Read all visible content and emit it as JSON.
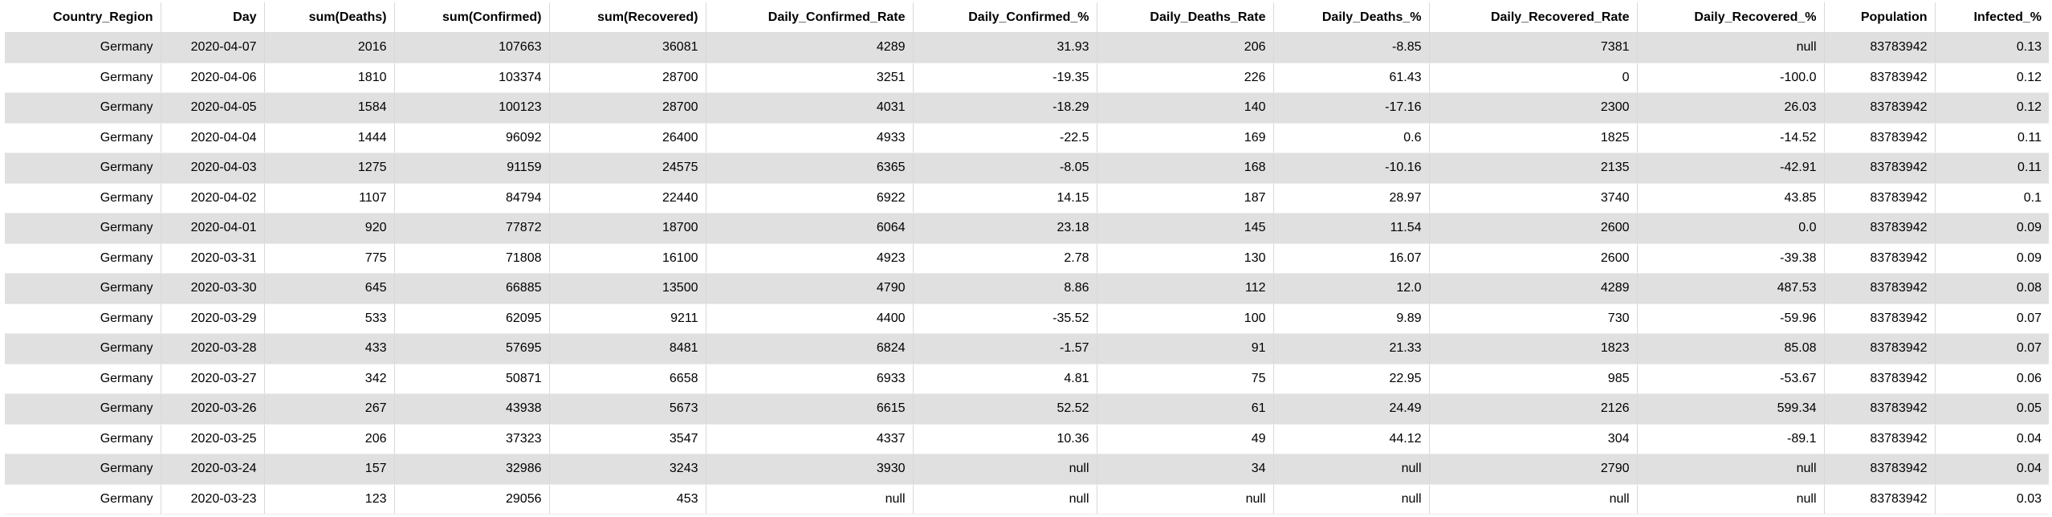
{
  "table": {
    "columns": [
      "Country_Region",
      "Day",
      "sum(Deaths)",
      "sum(Confirmed)",
      "sum(Recovered)",
      "Daily_Confirmed_Rate",
      "Daily_Confirmed_%",
      "Daily_Deaths_Rate",
      "Daily_Deaths_%",
      "Daily_Recovered_Rate",
      "Daily_Recovered_%",
      "Population",
      "Infected_%"
    ],
    "rows": [
      [
        "Germany",
        "2020-04-07",
        "2016",
        "107663",
        "36081",
        "4289",
        "31.93",
        "206",
        "-8.85",
        "7381",
        "null",
        "83783942",
        "0.13"
      ],
      [
        "Germany",
        "2020-04-06",
        "1810",
        "103374",
        "28700",
        "3251",
        "-19.35",
        "226",
        "61.43",
        "0",
        "-100.0",
        "83783942",
        "0.12"
      ],
      [
        "Germany",
        "2020-04-05",
        "1584",
        "100123",
        "28700",
        "4031",
        "-18.29",
        "140",
        "-17.16",
        "2300",
        "26.03",
        "83783942",
        "0.12"
      ],
      [
        "Germany",
        "2020-04-04",
        "1444",
        "96092",
        "26400",
        "4933",
        "-22.5",
        "169",
        "0.6",
        "1825",
        "-14.52",
        "83783942",
        "0.11"
      ],
      [
        "Germany",
        "2020-04-03",
        "1275",
        "91159",
        "24575",
        "6365",
        "-8.05",
        "168",
        "-10.16",
        "2135",
        "-42.91",
        "83783942",
        "0.11"
      ],
      [
        "Germany",
        "2020-04-02",
        "1107",
        "84794",
        "22440",
        "6922",
        "14.15",
        "187",
        "28.97",
        "3740",
        "43.85",
        "83783942",
        "0.1"
      ],
      [
        "Germany",
        "2020-04-01",
        "920",
        "77872",
        "18700",
        "6064",
        "23.18",
        "145",
        "11.54",
        "2600",
        "0.0",
        "83783942",
        "0.09"
      ],
      [
        "Germany",
        "2020-03-31",
        "775",
        "71808",
        "16100",
        "4923",
        "2.78",
        "130",
        "16.07",
        "2600",
        "-39.38",
        "83783942",
        "0.09"
      ],
      [
        "Germany",
        "2020-03-30",
        "645",
        "66885",
        "13500",
        "4790",
        "8.86",
        "112",
        "12.0",
        "4289",
        "487.53",
        "83783942",
        "0.08"
      ],
      [
        "Germany",
        "2020-03-29",
        "533",
        "62095",
        "9211",
        "4400",
        "-35.52",
        "100",
        "9.89",
        "730",
        "-59.96",
        "83783942",
        "0.07"
      ],
      [
        "Germany",
        "2020-03-28",
        "433",
        "57695",
        "8481",
        "6824",
        "-1.57",
        "91",
        "21.33",
        "1823",
        "85.08",
        "83783942",
        "0.07"
      ],
      [
        "Germany",
        "2020-03-27",
        "342",
        "50871",
        "6658",
        "6933",
        "4.81",
        "75",
        "22.95",
        "985",
        "-53.67",
        "83783942",
        "0.06"
      ],
      [
        "Germany",
        "2020-03-26",
        "267",
        "43938",
        "5673",
        "6615",
        "52.52",
        "61",
        "24.49",
        "2126",
        "599.34",
        "83783942",
        "0.05"
      ],
      [
        "Germany",
        "2020-03-25",
        "206",
        "37323",
        "3547",
        "4337",
        "10.36",
        "49",
        "44.12",
        "304",
        "-89.1",
        "83783942",
        "0.04"
      ],
      [
        "Germany",
        "2020-03-24",
        "157",
        "32986",
        "3243",
        "3930",
        "null",
        "34",
        "null",
        "2790",
        "null",
        "83783942",
        "0.04"
      ],
      [
        "Germany",
        "2020-03-23",
        "123",
        "29056",
        "453",
        "null",
        "null",
        "null",
        "null",
        "null",
        "null",
        "83783942",
        "0.03"
      ]
    ]
  },
  "colors": {
    "stripe": "#e0e0e0",
    "background": "#ffffff",
    "text": "#000000",
    "grid": "#d9d9d9"
  }
}
